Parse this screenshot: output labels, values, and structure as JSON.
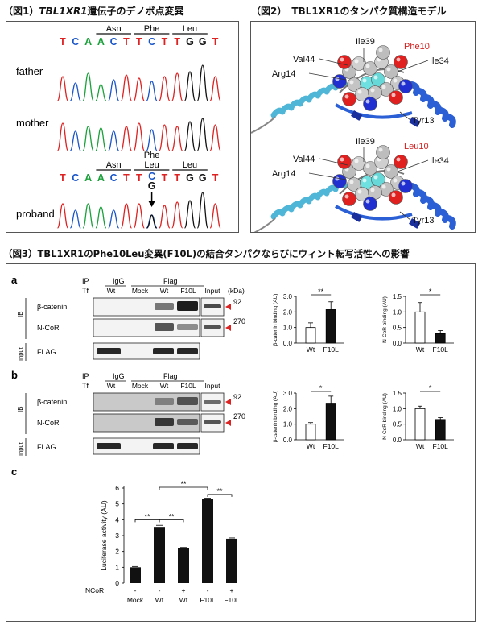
{
  "fig1": {
    "title": "（図1）",
    "title_gene": "TBL1XR1",
    "title_rest": "遺伝子のデノボ点変異",
    "parent_seq": [
      "T",
      "C",
      "A",
      "A",
      "C",
      "T",
      "T",
      "C",
      "T",
      "T",
      "G",
      "G",
      "T"
    ],
    "parent_aa": [
      "Asn",
      "Phe",
      "Leu"
    ],
    "proband_seq": [
      "T",
      "C",
      "A",
      "A",
      "C",
      "T",
      "T",
      "C",
      "T",
      "T",
      "G",
      "G",
      "T"
    ],
    "proband_aa": [
      "Asn",
      "Phe",
      "Leu",
      "Leu"
    ],
    "mut_top": "C",
    "mut_bottom": "G",
    "rows": [
      "father",
      "mother",
      "proband"
    ],
    "colors": {
      "T": "#d22",
      "C": "#1a56c8",
      "A": "#1aa13a",
      "G": "#111"
    }
  },
  "fig2": {
    "title": "（図2）　TBL1XR1のタンパク質構造モデル",
    "top_labels": [
      "Ile39",
      "Phe10",
      "Val44",
      "Ile34",
      "Arg14",
      "Tyr13"
    ],
    "bottom_labels": [
      "Ile39",
      "Leu10",
      "Val44",
      "Ile34",
      "Arg14",
      "Tyr13"
    ]
  },
  "fig3": {
    "title": "（図3）TBL1XR1のPhe10Leu変異(F10L)の結合タンパクならびにウィント転写活性への影響",
    "panel_a": "a",
    "panel_b": "b",
    "panel_c": "c",
    "ip": "IP",
    "tf": "Tf",
    "igg": "IgG",
    "flag_hdr": "Flag",
    "lanes": [
      "Wt",
      "Mock",
      "Wt",
      "F10L",
      "Input"
    ],
    "kda": "(kDa)",
    "ib": "IB",
    "input_label": "Input",
    "rows": [
      "β-catenin",
      "N-CoR",
      "FLAG"
    ],
    "mw": [
      "92",
      "270"
    ]
  },
  "chart_data": [
    {
      "type": "bar",
      "panel": "a",
      "title": "",
      "ylabel": "β-catenin binding (AU)",
      "categories": [
        "Wt",
        "F10L"
      ],
      "values": [
        1.0,
        2.15
      ],
      "errors": [
        0.3,
        0.5
      ],
      "ylim": [
        0,
        3
      ],
      "yticks": [
        "0.0",
        "1.0",
        "2.0",
        "3.0"
      ],
      "significance": "**"
    },
    {
      "type": "bar",
      "panel": "a",
      "title": "",
      "ylabel": "N-CoR binding (AU)",
      "categories": [
        "Wt",
        "F10L"
      ],
      "values": [
        1.0,
        0.3
      ],
      "errors": [
        0.3,
        0.1
      ],
      "ylim": [
        0,
        1.5
      ],
      "yticks": [
        "0.0",
        "0.5",
        "1.0",
        "1.5"
      ],
      "significance": "*"
    },
    {
      "type": "bar",
      "panel": "b",
      "title": "",
      "ylabel": "β-catenin binding (AU)",
      "categories": [
        "Wt",
        "F10L"
      ],
      "values": [
        1.0,
        2.35
      ],
      "errors": [
        0.1,
        0.45
      ],
      "ylim": [
        0,
        3
      ],
      "yticks": [
        "0.0",
        "1.0",
        "2.0",
        "3.0"
      ],
      "significance": "*"
    },
    {
      "type": "bar",
      "panel": "b",
      "title": "",
      "ylabel": "N-CoR binding (AU)",
      "categories": [
        "Wt",
        "F10L"
      ],
      "values": [
        1.0,
        0.65
      ],
      "errors": [
        0.08,
        0.06
      ],
      "ylim": [
        0,
        1.5
      ],
      "yticks": [
        "0.0",
        "0.5",
        "1.0",
        "1.5"
      ],
      "significance": "*"
    },
    {
      "type": "bar",
      "panel": "c",
      "title": "",
      "ylabel": "Luciferase activity (AU)",
      "categories": [
        "Mock",
        "Wt",
        "Wt",
        "F10L",
        "F10L"
      ],
      "ncor": [
        "-",
        "-",
        "+",
        "-",
        "+"
      ],
      "ncor_label": "NCoR",
      "values": [
        1.0,
        3.55,
        2.2,
        5.3,
        2.8
      ],
      "errors": [
        0.05,
        0.1,
        0.05,
        0.07,
        0.05
      ],
      "ylim": [
        0,
        6
      ],
      "yticks": [
        "0",
        "1",
        "2",
        "3",
        "4",
        "5",
        "6"
      ],
      "significance": [
        "**",
        "**",
        "**",
        "**"
      ]
    }
  ]
}
